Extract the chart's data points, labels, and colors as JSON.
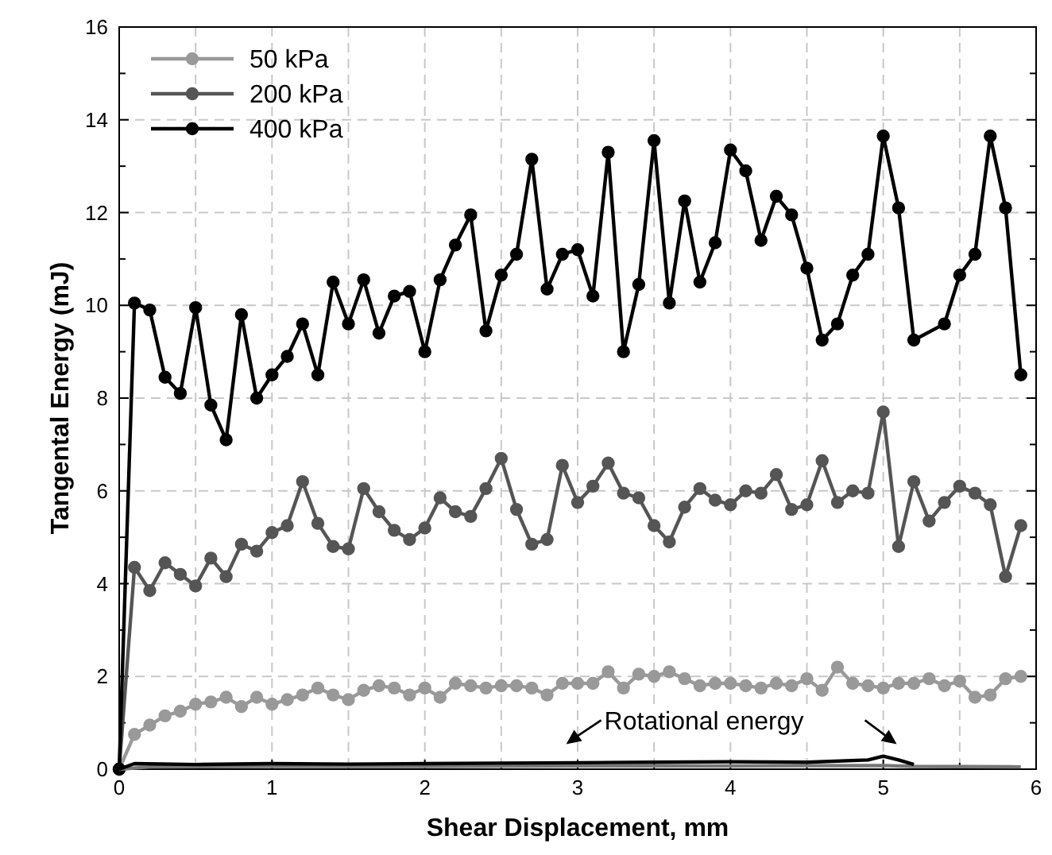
{
  "chart_data": {
    "type": "line",
    "xlabel": "Shear Displacement, mm",
    "ylabel": "Tangental Energy (mJ)",
    "xlim": [
      0,
      6
    ],
    "ylim": [
      0,
      16
    ],
    "xticks": [
      0,
      {
        "value": 0.5,
        "label": null
      },
      1,
      {
        "value": 1.5,
        "label": null
      },
      2,
      {
        "value": 2.5,
        "label": null
      },
      3,
      {
        "value": 3.5,
        "label": null
      },
      4,
      {
        "value": 4.5,
        "label": null
      },
      5,
      {
        "value": 5.5,
        "label": null
      },
      6
    ],
    "yticks": [
      0,
      {
        "value": 1,
        "label": null
      },
      2,
      {
        "value": 3,
        "label": null
      },
      4,
      {
        "value": 5,
        "label": null
      },
      6,
      {
        "value": 7,
        "label": null
      },
      8,
      {
        "value": 9,
        "label": null
      },
      10,
      {
        "value": 11,
        "label": null
      },
      12,
      {
        "value": 13,
        "label": null
      },
      14,
      {
        "value": 15,
        "label": null
      },
      16
    ],
    "grid": true,
    "legend": "top left",
    "marker": "circle",
    "line_style": "solid",
    "annotations": [
      "Rotational energy"
    ],
    "series": [
      {
        "name": "50 kPa",
        "color": "#999999",
        "x": [
          0,
          0.1,
          0.2,
          0.3,
          0.4,
          0.5,
          0.6,
          0.7,
          0.8,
          0.9,
          1.0,
          1.1,
          1.2,
          1.3,
          1.4,
          1.5,
          1.6,
          1.7,
          1.8,
          1.9,
          2.0,
          2.1,
          2.2,
          2.3,
          2.4,
          2.5,
          2.6,
          2.7,
          2.8,
          2.9,
          3.0,
          3.1,
          3.2,
          3.3,
          3.4,
          3.5,
          3.6,
          3.7,
          3.8,
          3.9,
          4.0,
          4.1,
          4.2,
          4.3,
          4.4,
          4.5,
          4.6,
          4.7,
          4.8,
          4.9,
          5.0,
          5.1,
          5.2,
          5.3,
          5.4,
          5.5,
          5.6,
          5.7,
          5.8,
          5.9
        ],
        "values": [
          0,
          0.75,
          0.95,
          1.15,
          1.25,
          1.4,
          1.45,
          1.55,
          1.35,
          1.55,
          1.4,
          1.5,
          1.6,
          1.75,
          1.6,
          1.5,
          1.7,
          1.8,
          1.75,
          1.6,
          1.75,
          1.55,
          1.85,
          1.8,
          1.75,
          1.8,
          1.8,
          1.75,
          1.6,
          1.85,
          1.85,
          1.85,
          2.1,
          1.75,
          2.05,
          2.0,
          2.1,
          1.95,
          1.8,
          1.85,
          1.85,
          1.8,
          1.75,
          1.85,
          1.8,
          1.95,
          1.7,
          2.2,
          1.85,
          1.8,
          1.75,
          1.85,
          1.85,
          1.95,
          1.8,
          1.9,
          1.55,
          1.6,
          1.95,
          2.0
        ]
      },
      {
        "name": "200 kPa",
        "color": "#555555",
        "x": [
          0,
          0.1,
          0.2,
          0.3,
          0.4,
          0.5,
          0.6,
          0.7,
          0.8,
          0.9,
          1.0,
          1.1,
          1.2,
          1.3,
          1.4,
          1.5,
          1.6,
          1.7,
          1.8,
          1.9,
          2.0,
          2.1,
          2.2,
          2.3,
          2.4,
          2.5,
          2.6,
          2.7,
          2.8,
          2.9,
          3.0,
          3.1,
          3.2,
          3.3,
          3.4,
          3.5,
          3.6,
          3.7,
          3.8,
          3.9,
          4.0,
          4.1,
          4.2,
          4.3,
          4.4,
          4.5,
          4.6,
          4.7,
          4.8,
          4.9,
          5.0,
          5.1,
          5.2,
          5.3,
          5.4,
          5.5,
          5.6,
          5.7,
          5.8,
          5.9
        ],
        "values": [
          0,
          4.35,
          3.85,
          4.45,
          4.2,
          3.95,
          4.55,
          4.15,
          4.85,
          4.7,
          5.1,
          5.25,
          6.2,
          5.3,
          4.8,
          4.75,
          6.05,
          5.55,
          5.15,
          4.95,
          5.2,
          5.85,
          5.55,
          5.45,
          6.05,
          6.7,
          5.6,
          4.85,
          4.95,
          6.55,
          5.75,
          6.1,
          6.6,
          5.95,
          5.85,
          5.25,
          4.9,
          5.65,
          6.05,
          5.8,
          5.7,
          6.0,
          5.95,
          6.35,
          5.6,
          5.7,
          6.65,
          5.75,
          6.0,
          5.95,
          7.7,
          4.8,
          6.2,
          5.35,
          5.75,
          6.1,
          5.95,
          5.7,
          4.15,
          5.25
        ]
      },
      {
        "name": "400 kPa",
        "color": "#000000",
        "x": [
          0,
          0.1,
          0.2,
          0.3,
          0.4,
          0.5,
          0.6,
          0.7,
          0.8,
          0.9,
          1.0,
          1.1,
          1.2,
          1.3,
          1.4,
          1.5,
          1.6,
          1.7,
          1.8,
          1.9,
          2.0,
          2.1,
          2.2,
          2.3,
          2.4,
          2.5,
          2.6,
          2.7,
          2.8,
          2.9,
          3.0,
          3.1,
          3.2,
          3.3,
          3.4,
          3.5,
          3.6,
          3.7,
          3.8,
          3.9,
          4.0,
          4.1,
          4.2,
          4.3,
          4.4,
          4.5,
          4.6,
          4.7,
          4.8,
          4.9,
          5.0,
          5.1,
          5.2,
          5.4,
          5.5,
          5.6,
          5.7,
          5.8,
          5.9
        ],
        "values": [
          0,
          10.05,
          9.9,
          8.45,
          8.1,
          9.95,
          7.85,
          7.1,
          9.8,
          8.0,
          8.5,
          8.9,
          9.6,
          8.5,
          10.5,
          9.6,
          10.55,
          9.4,
          10.2,
          10.3,
          9.0,
          10.55,
          11.3,
          11.95,
          9.45,
          10.65,
          11.1,
          13.15,
          10.35,
          11.1,
          11.2,
          10.2,
          13.3,
          9.0,
          10.45,
          13.55,
          10.05,
          12.25,
          10.5,
          11.35,
          13.35,
          12.9,
          11.4,
          12.35,
          11.95,
          10.8,
          9.25,
          9.6,
          10.65,
          11.1,
          13.65,
          12.1,
          9.25,
          9.6,
          10.65,
          11.1,
          13.65,
          12.1,
          8.5
        ]
      },
      {
        "color": "#777777",
        "marker": "none",
        "x": [
          0,
          0.2,
          1,
          2,
          3,
          4,
          5,
          5.2,
          5.9
        ],
        "values": [
          0,
          0.05,
          0.06,
          0.06,
          0.07,
          0.07,
          0.08,
          0.06,
          0.05
        ]
      },
      {
        "color": "#000000",
        "marker": "none",
        "x": [
          0,
          0.1,
          0.5,
          1,
          1.5,
          2,
          2.5,
          3,
          3.5,
          4,
          4.5,
          4.9,
          5.0,
          5.1,
          5.2
        ],
        "values": [
          0,
          0.12,
          0.1,
          0.12,
          0.11,
          0.12,
          0.13,
          0.14,
          0.15,
          0.16,
          0.15,
          0.2,
          0.28,
          0.2,
          0.1
        ]
      }
    ]
  }
}
